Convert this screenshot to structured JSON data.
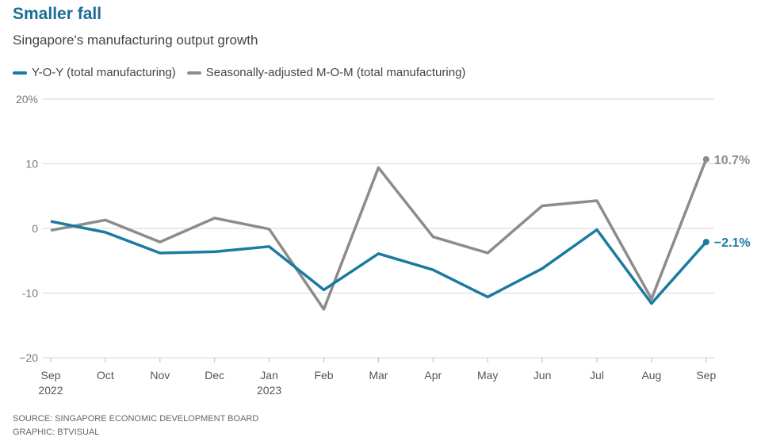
{
  "title": "Smaller fall",
  "subtitle": "Singapore's manufacturing output growth",
  "source": "SOURCE: SINGAPORE ECONOMIC DEVELOPMENT BOARD",
  "graphic": "GRAPHIC: BTVISUAL",
  "chart_data": {
    "type": "line",
    "title": "Smaller fall",
    "xlabel": "",
    "ylabel": "",
    "ylim": [
      -20,
      20
    ],
    "yticks": [
      {
        "v": 20,
        "label": "20%"
      },
      {
        "v": 10,
        "label": "10"
      },
      {
        "v": 0,
        "label": "0"
      },
      {
        "v": -10,
        "label": "-10"
      },
      {
        "v": -20,
        "label": "−20"
      }
    ],
    "categories": [
      "Sep",
      "Oct",
      "Nov",
      "Dec",
      "Jan",
      "Feb",
      "Mar",
      "Apr",
      "May",
      "Jun",
      "Jul",
      "Aug",
      "Sep"
    ],
    "sublabels": [
      "2022",
      "",
      "",
      "",
      "2023",
      "",
      "",
      "",
      "",
      "",
      "",
      "",
      ""
    ],
    "grid": true,
    "legend": "top-left",
    "series": [
      {
        "name": "Y-O-Y (total manufacturing)",
        "color": "#1a7aa0",
        "values": [
          1.1,
          -0.6,
          -3.8,
          -3.6,
          -2.8,
          -9.5,
          -3.9,
          -6.4,
          -10.6,
          -6.2,
          -0.2,
          -11.6,
          -2.1
        ],
        "end_label": "−2.1%"
      },
      {
        "name": "Seasonally-adjusted M-O-M (total manufacturing)",
        "color": "#8c8c8c",
        "values": [
          -0.3,
          1.3,
          -2.1,
          1.6,
          -0.1,
          -12.5,
          9.4,
          -1.3,
          -3.8,
          3.5,
          4.3,
          -10.9,
          10.7
        ],
        "end_label": "10.7%"
      }
    ]
  }
}
